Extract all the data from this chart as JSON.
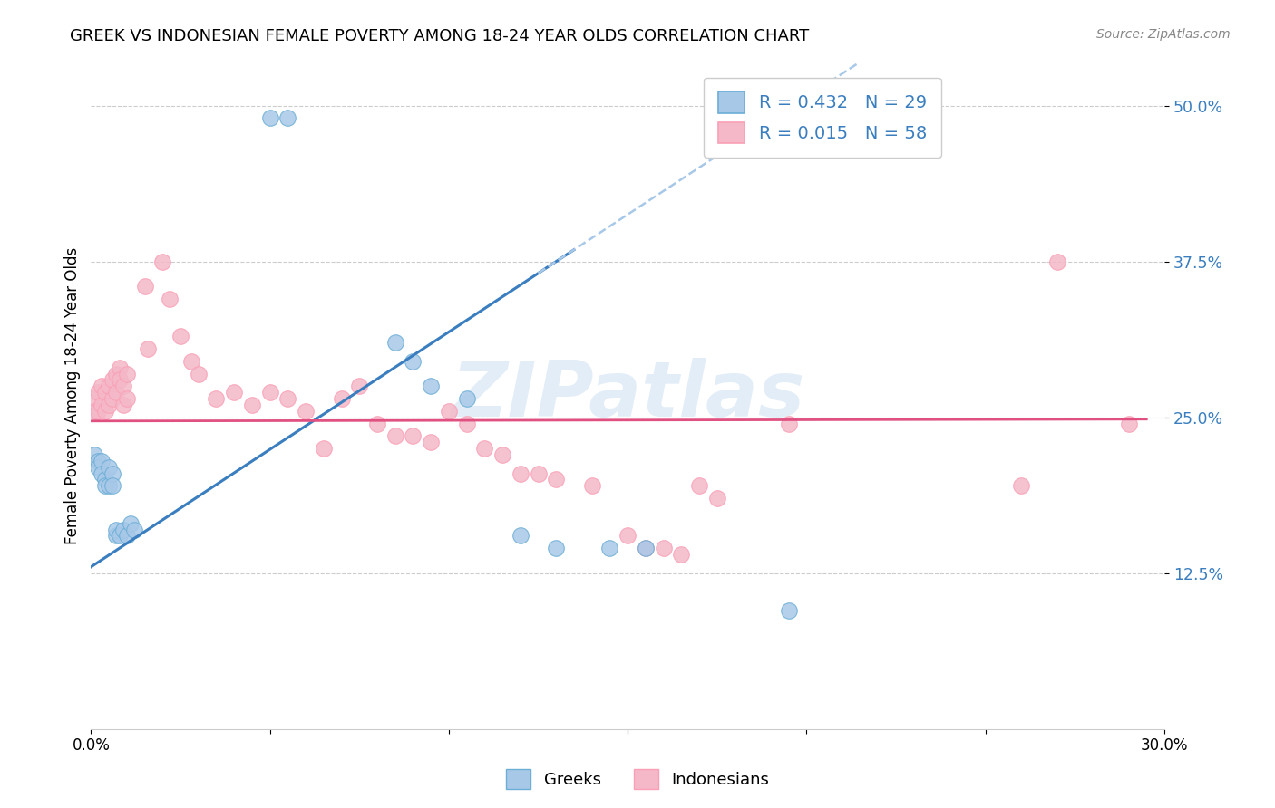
{
  "title": "GREEK VS INDONESIAN FEMALE POVERTY AMONG 18-24 YEAR OLDS CORRELATION CHART",
  "source": "Source: ZipAtlas.com",
  "ylabel": "Female Poverty Among 18-24 Year Olds",
  "xlim": [
    0.0,
    0.3
  ],
  "ylim": [
    0.0,
    0.535
  ],
  "yticks": [
    0.125,
    0.25,
    0.375,
    0.5
  ],
  "ytick_labels": [
    "12.5%",
    "25.0%",
    "37.5%",
    "50.0%"
  ],
  "watermark": "ZIPatlas",
  "legend_r_greek": "0.432",
  "legend_n_greek": "29",
  "legend_r_indonesian": "0.015",
  "legend_n_indonesian": "58",
  "greek_color": "#a8c8e8",
  "greek_edge_color": "#6baed6",
  "indonesian_color": "#f4b8c8",
  "indonesian_edge_color": "#fa9fb5",
  "greek_line_color": "#3a7ebf",
  "indonesian_line_color": "#e05080",
  "dashed_line_color": "#a8c8e8",
  "tick_label_color": "#3a7ebf",
  "background_color": "#ffffff",
  "grid_color": "#cccccc",
  "greek_points": [
    [
      0.001,
      0.22
    ],
    [
      0.002,
      0.215
    ],
    [
      0.002,
      0.21
    ],
    [
      0.003,
      0.215
    ],
    [
      0.003,
      0.205
    ],
    [
      0.004,
      0.2
    ],
    [
      0.004,
      0.195
    ],
    [
      0.005,
      0.21
    ],
    [
      0.005,
      0.195
    ],
    [
      0.006,
      0.205
    ],
    [
      0.006,
      0.195
    ],
    [
      0.007,
      0.155
    ],
    [
      0.007,
      0.16
    ],
    [
      0.008,
      0.155
    ],
    [
      0.009,
      0.16
    ],
    [
      0.01,
      0.155
    ],
    [
      0.011,
      0.165
    ],
    [
      0.012,
      0.16
    ],
    [
      0.05,
      0.49
    ],
    [
      0.055,
      0.49
    ],
    [
      0.085,
      0.31
    ],
    [
      0.09,
      0.295
    ],
    [
      0.095,
      0.275
    ],
    [
      0.105,
      0.265
    ],
    [
      0.12,
      0.155
    ],
    [
      0.13,
      0.145
    ],
    [
      0.145,
      0.145
    ],
    [
      0.155,
      0.145
    ],
    [
      0.195,
      0.095
    ]
  ],
  "indonesian_points": [
    [
      0.001,
      0.265
    ],
    [
      0.001,
      0.255
    ],
    [
      0.002,
      0.27
    ],
    [
      0.002,
      0.255
    ],
    [
      0.003,
      0.275
    ],
    [
      0.003,
      0.26
    ],
    [
      0.004,
      0.27
    ],
    [
      0.004,
      0.255
    ],
    [
      0.005,
      0.275
    ],
    [
      0.005,
      0.26
    ],
    [
      0.006,
      0.28
    ],
    [
      0.006,
      0.265
    ],
    [
      0.007,
      0.285
    ],
    [
      0.007,
      0.27
    ],
    [
      0.008,
      0.29
    ],
    [
      0.008,
      0.28
    ],
    [
      0.009,
      0.275
    ],
    [
      0.009,
      0.26
    ],
    [
      0.01,
      0.285
    ],
    [
      0.01,
      0.265
    ],
    [
      0.015,
      0.355
    ],
    [
      0.016,
      0.305
    ],
    [
      0.02,
      0.375
    ],
    [
      0.022,
      0.345
    ],
    [
      0.025,
      0.315
    ],
    [
      0.028,
      0.295
    ],
    [
      0.03,
      0.285
    ],
    [
      0.035,
      0.265
    ],
    [
      0.04,
      0.27
    ],
    [
      0.045,
      0.26
    ],
    [
      0.05,
      0.27
    ],
    [
      0.055,
      0.265
    ],
    [
      0.06,
      0.255
    ],
    [
      0.065,
      0.225
    ],
    [
      0.07,
      0.265
    ],
    [
      0.075,
      0.275
    ],
    [
      0.08,
      0.245
    ],
    [
      0.085,
      0.235
    ],
    [
      0.09,
      0.235
    ],
    [
      0.095,
      0.23
    ],
    [
      0.1,
      0.255
    ],
    [
      0.105,
      0.245
    ],
    [
      0.11,
      0.225
    ],
    [
      0.115,
      0.22
    ],
    [
      0.12,
      0.205
    ],
    [
      0.125,
      0.205
    ],
    [
      0.13,
      0.2
    ],
    [
      0.14,
      0.195
    ],
    [
      0.15,
      0.155
    ],
    [
      0.155,
      0.145
    ],
    [
      0.16,
      0.145
    ],
    [
      0.165,
      0.14
    ],
    [
      0.17,
      0.195
    ],
    [
      0.175,
      0.185
    ],
    [
      0.195,
      0.245
    ],
    [
      0.26,
      0.195
    ],
    [
      0.27,
      0.375
    ],
    [
      0.29,
      0.245
    ]
  ]
}
